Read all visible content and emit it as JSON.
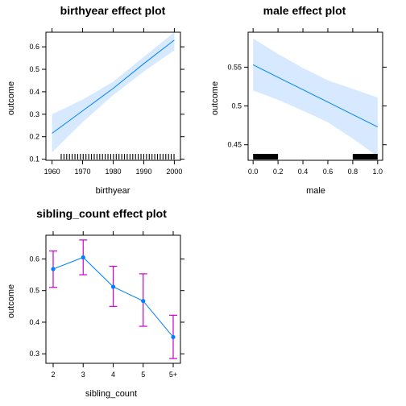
{
  "chart_data": [
    {
      "type": "line",
      "title": "birthyear effect plot",
      "xlabel": "birthyear",
      "ylabel": "outcome",
      "xlim": [
        1958,
        2002
      ],
      "ylim": [
        0.095,
        0.665
      ],
      "xticks": [
        1960,
        1970,
        1980,
        1990,
        2000
      ],
      "yticks": [
        0.1,
        0.2,
        0.3,
        0.4,
        0.5,
        0.6
      ],
      "x": [
        1960,
        1970,
        1980,
        1990,
        2000
      ],
      "y": [
        0.215,
        0.315,
        0.415,
        0.525,
        0.63
      ],
      "ci_lower": [
        0.13,
        0.265,
        0.385,
        0.49,
        0.585
      ],
      "ci_upper": [
        0.3,
        0.365,
        0.445,
        0.555,
        0.665
      ],
      "rug": "dense-ticks",
      "rug_range": [
        1963,
        2000
      ],
      "line_color": "#0080ff",
      "band_color": "#d6e9ff",
      "grid": false
    },
    {
      "type": "line",
      "title": "male effect plot",
      "xlabel": "male",
      "ylabel": "outcome",
      "xlim": [
        -0.04,
        1.04
      ],
      "ylim": [
        0.43,
        0.595
      ],
      "xticks": [
        0.0,
        0.2,
        0.4,
        0.6,
        0.8,
        1.0
      ],
      "yticks": [
        0.45,
        0.5,
        0.55
      ],
      "x": [
        0.0,
        0.2,
        0.4,
        0.6,
        0.8,
        1.0
      ],
      "y": [
        0.553,
        0.537,
        0.521,
        0.505,
        0.489,
        0.473
      ],
      "ci_lower": [
        0.52,
        0.508,
        0.494,
        0.479,
        0.458,
        0.435
      ],
      "ci_upper": [
        0.587,
        0.567,
        0.549,
        0.533,
        0.522,
        0.511
      ],
      "rug_blocks": [
        [
          0.0,
          0.2
        ],
        [
          0.8,
          1.0
        ]
      ],
      "line_color": "#0080ff",
      "band_color": "#d6e9ff",
      "grid": false
    },
    {
      "type": "line",
      "title": "sibling_count effect plot",
      "xlabel": "sibling_count",
      "ylabel": "outcome",
      "categories": [
        "2",
        "3",
        "4",
        "5",
        "5+"
      ],
      "yticks": [
        0.3,
        0.4,
        0.5,
        0.6
      ],
      "ylim": [
        0.27,
        0.675
      ],
      "values": [
        0.568,
        0.605,
        0.512,
        0.467,
        0.353
      ],
      "ci_lower": [
        0.51,
        0.55,
        0.45,
        0.387,
        0.285
      ],
      "ci_upper": [
        0.625,
        0.66,
        0.577,
        0.553,
        0.422
      ],
      "line_color": "#0080ff",
      "errorbar_color": "#cc00cc",
      "grid": false
    }
  ]
}
